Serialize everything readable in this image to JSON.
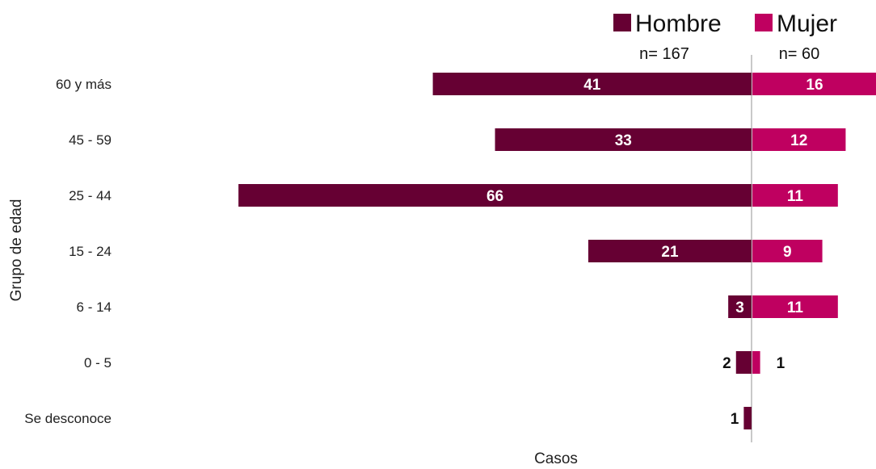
{
  "chart_data": {
    "type": "bar",
    "orientation": "horizontal-diverging",
    "categories": [
      "60 y más",
      "45 - 59",
      "25 - 44",
      "15 - 24",
      "6 - 14",
      "0 - 5",
      "Se desconoce"
    ],
    "series": [
      {
        "name": "Hombre",
        "values": [
          41,
          33,
          66,
          21,
          3,
          2,
          1
        ],
        "color": "#660033",
        "n_label": "n= 167"
      },
      {
        "name": "Mujer",
        "values": [
          16,
          12,
          11,
          9,
          11,
          1,
          0
        ],
        "color": "#bf0060",
        "n_label": "n= 60"
      }
    ],
    "xlabel": "Casos",
    "ylabel": "Grupo de edad",
    "grid": false,
    "legend_position": "top-right"
  }
}
